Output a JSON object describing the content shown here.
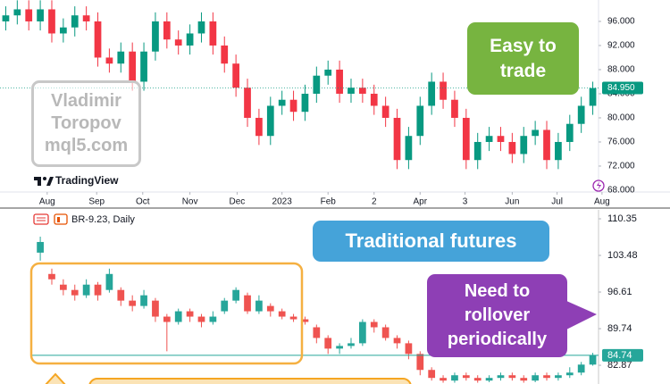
{
  "chart_data": [
    {
      "type": "candlestick",
      "brand": "TradingView",
      "annotation": "Easy to trade",
      "watermark": "Vladimir Toropov mql5.com",
      "open": [
        96,
        97,
        98,
        96,
        98,
        94,
        95,
        97,
        96,
        90,
        89,
        91,
        86,
        91,
        96,
        93,
        92,
        94,
        96,
        92,
        89,
        85,
        80,
        77,
        82,
        83,
        81,
        84,
        87,
        88,
        84,
        85,
        84,
        82,
        80,
        73,
        77,
        82,
        86,
        83,
        80,
        73,
        76,
        77,
        76,
        74,
        77,
        78,
        73,
        76,
        79,
        82
      ],
      "high": [
        98.5,
        99.5,
        99.5,
        99.5,
        99.5,
        96.5,
        98.5,
        98.5,
        97.5,
        91.5,
        92.5,
        92.5,
        92.5,
        97.5,
        97.5,
        94.5,
        95.5,
        97.5,
        97.5,
        93.5,
        90.5,
        86.5,
        81.5,
        83.5,
        84.5,
        84.5,
        85.5,
        88.5,
        89.5,
        89.5,
        86.5,
        86.5,
        85.5,
        83.5,
        81.5,
        78.5,
        83.5,
        87.5,
        87.5,
        84.5,
        81.5,
        77.5,
        78.5,
        78.5,
        77.5,
        78.5,
        79.5,
        79.5,
        77.5,
        80.5,
        83.5,
        86
      ],
      "low": [
        94.5,
        95.5,
        94.5,
        94.5,
        92.5,
        92.5,
        93.5,
        94.5,
        88.5,
        87.5,
        87.5,
        84.5,
        84.5,
        89.5,
        91.5,
        90.5,
        90.5,
        92.5,
        90.5,
        87.5,
        83.5,
        78.5,
        75.5,
        75.5,
        80.5,
        79.5,
        79.5,
        82.5,
        85.5,
        82.5,
        82.5,
        82.5,
        80.5,
        78.5,
        71.5,
        71.5,
        75.5,
        80.5,
        81.5,
        78.5,
        71.5,
        71.5,
        74.5,
        74.5,
        72.5,
        72.5,
        75.5,
        71.5,
        71.5,
        74.5,
        77.5,
        80.5
      ],
      "close": [
        97,
        98,
        96,
        98,
        94,
        95,
        97,
        96,
        90,
        89,
        91,
        86,
        91,
        96,
        93,
        92,
        94,
        96,
        92,
        89,
        85,
        80,
        77,
        82,
        83,
        81,
        84,
        87,
        88,
        84,
        85,
        84,
        82,
        80,
        73,
        77,
        82,
        86,
        83,
        80,
        73,
        76,
        77,
        76,
        74,
        77,
        78,
        73,
        76,
        79,
        82,
        84.95
      ],
      "up_color": "#089981",
      "down_color": "#f23645",
      "xlim": [
        0,
        52
      ],
      "xticks": [
        {
          "value": 4.1,
          "label": "Aug"
        },
        {
          "value": 8.4,
          "label": "Sep"
        },
        {
          "value": 12.4,
          "label": "Oct"
        },
        {
          "value": 16.5,
          "label": "Nov"
        },
        {
          "value": 20.6,
          "label": "Dec"
        },
        {
          "value": 24.5,
          "label": "2023"
        },
        {
          "value": 28.5,
          "label": "Feb"
        },
        {
          "value": 32.5,
          "label": "2"
        },
        {
          "value": 36.5,
          "label": "Apr"
        },
        {
          "value": 40.4,
          "label": "3"
        },
        {
          "value": 44.5,
          "label": "Jun"
        },
        {
          "value": 48.4,
          "label": "Jul"
        },
        {
          "value": 52.3,
          "label": "Aug"
        }
      ],
      "ylim": [
        67.7,
        99.55
      ],
      "yticks": [
        {
          "value": 68,
          "label": "68.000"
        },
        {
          "value": 72,
          "label": "72.000"
        },
        {
          "value": 76,
          "label": "76.000"
        },
        {
          "value": 80,
          "label": "80.000"
        },
        {
          "value": 84,
          "label": "84.000"
        },
        {
          "value": 88,
          "label": "88.000"
        },
        {
          "value": 92,
          "label": "92.000"
        },
        {
          "value": 96,
          "label": "96.000"
        }
      ],
      "last_price": {
        "value": 84.95,
        "label": "84.950"
      }
    },
    {
      "type": "candlestick",
      "title": "BR-9.23, Daily",
      "annotations": [
        "Traditional futures",
        "Need to rollover periodically"
      ],
      "open": [
        null,
        null,
        null,
        104,
        100,
        98,
        97,
        96,
        98,
        97,
        97,
        95,
        94,
        95,
        92,
        91,
        93,
        92,
        91,
        93,
        95,
        96,
        93,
        94,
        93,
        92,
        91.5,
        90,
        88,
        86,
        86.5,
        87,
        91,
        90,
        88,
        87,
        85,
        82,
        80.5,
        80,
        81,
        80.5,
        80,
        80.5,
        81,
        80.5,
        80,
        81,
        80.5,
        81,
        81.5,
        83
      ],
      "high": [
        null,
        null,
        null,
        107,
        101,
        99,
        98,
        99,
        98.5,
        101,
        97.5,
        96,
        97,
        95.5,
        92.5,
        93.5,
        93.5,
        92.5,
        93,
        95.5,
        97.5,
        96.5,
        96,
        94.5,
        93.5,
        92.5,
        92,
        90.5,
        88.5,
        87,
        88,
        91.5,
        91.5,
        90.5,
        88.5,
        87.5,
        85.5,
        82.5,
        81,
        81.5,
        81.5,
        81,
        81,
        81.5,
        81.5,
        81,
        81.5,
        81.5,
        81.5,
        82.5,
        83.5,
        85.2
      ],
      "low": [
        null,
        null,
        null,
        102.5,
        98,
        96,
        95,
        95.5,
        95,
        96.5,
        94,
        93,
        93.5,
        91,
        85.5,
        90.5,
        91,
        90,
        90.5,
        92.5,
        94.5,
        92.5,
        92.5,
        92,
        91.5,
        91,
        90.5,
        87,
        85,
        85,
        86,
        86.5,
        89,
        87.5,
        86,
        84,
        81,
        80,
        79.6,
        79.6,
        80,
        79.6,
        79.7,
        80,
        80,
        79.6,
        79.7,
        80,
        80,
        80.5,
        81,
        82.8
      ],
      "close": [
        null,
        null,
        null,
        106,
        99,
        97,
        96,
        98,
        96,
        100,
        95,
        94,
        96,
        92,
        91,
        93,
        92,
        91,
        92,
        95,
        97,
        93,
        95,
        93,
        92,
        91.5,
        91,
        88,
        86,
        86.5,
        87,
        91,
        90,
        88,
        87,
        85,
        82,
        80.5,
        80,
        81,
        80.5,
        80,
        80.5,
        81,
        80.5,
        80,
        81,
        80.5,
        81,
        81.5,
        83,
        84.74
      ],
      "up_color": "#26a69a",
      "down_color": "#ef5350",
      "xlim": [
        0,
        52
      ],
      "ylim": [
        79.36,
        111.69
      ],
      "yticks": [
        82.87,
        89.74,
        96.61,
        103.48,
        110.35
      ],
      "last_price": 84.74
    }
  ]
}
